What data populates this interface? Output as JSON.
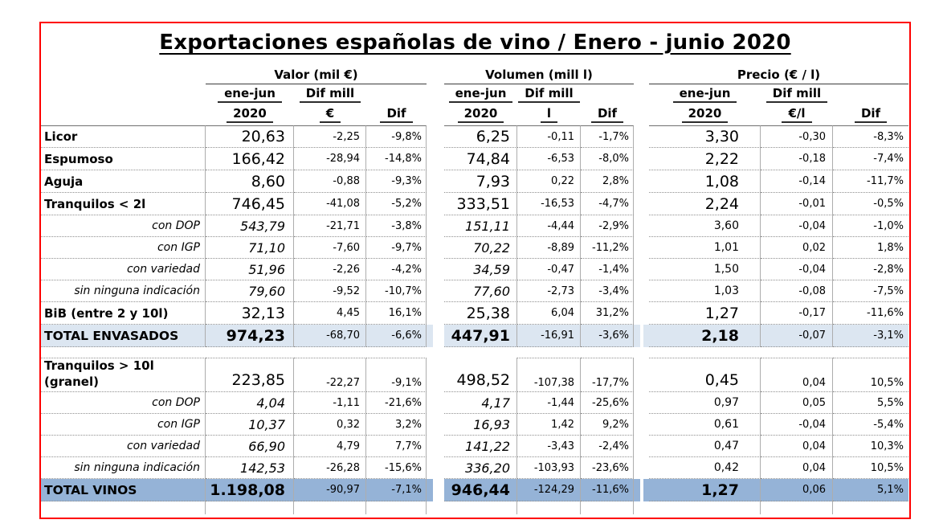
{
  "header": {
    "group_titles": [
      "Valor (mil €)",
      "Volumen (mill l)",
      "Precio (€ / l)"
    ],
    "period_line1": "ene-jun",
    "period_line2": "2020",
    "dif_line1": "Dif mill",
    "dif_units": [
      "€",
      "l",
      "€/l"
    ],
    "dif_label": "Dif"
  },
  "colors": {
    "border_red": "#fe0000",
    "total_envasados_bg": "#dce6f1",
    "total_vinos_bg": "#95b3d7",
    "note_marker_green": "#1e7b3c"
  },
  "chart_data": {
    "type": "table",
    "title": "Exportaciones españolas de vino / Enero - junio 2020",
    "column_groups": [
      {
        "title": "Valor (mil €)",
        "columns": [
          "ene-jun 2020",
          "Dif mill €",
          "Dif"
        ]
      },
      {
        "title": "Volumen (mill l)",
        "columns": [
          "ene-jun 2020",
          "Dif mill l",
          "Dif"
        ]
      },
      {
        "title": "Precio (€ / l)",
        "columns": [
          "ene-jun 2020",
          "Dif mill €/l",
          "Dif"
        ]
      }
    ],
    "rows": [
      {
        "type": "main",
        "label": "Licor",
        "valor": [
          "20,63",
          "-2,25",
          "-9,8%"
        ],
        "volumen": [
          "6,25",
          "-0,11",
          "-1,7%"
        ],
        "precio": [
          "3,30",
          "-0,30",
          "-8,3%"
        ]
      },
      {
        "type": "main",
        "label": "Espumoso",
        "valor": [
          "166,42",
          "-28,94",
          "-14,8%"
        ],
        "volumen": [
          "74,84",
          "-6,53",
          "-8,0%"
        ],
        "precio": [
          "2,22",
          "-0,18",
          "-7,4%"
        ]
      },
      {
        "type": "main",
        "label": "Aguja",
        "valor": [
          "8,60",
          "-0,88",
          "-9,3%"
        ],
        "volumen": [
          "7,93",
          "0,22",
          "2,8%"
        ],
        "precio": [
          "1,08",
          "-0,14",
          "-11,7%"
        ]
      },
      {
        "type": "main",
        "label": "Tranquilos < 2l",
        "notes": [
          "valor",
          "volumen"
        ],
        "valor": [
          "746,45",
          "-41,08",
          "-5,2%"
        ],
        "volumen": [
          "333,51",
          "-16,53",
          "-4,7%"
        ],
        "precio": [
          "2,24",
          "-0,01",
          "-0,5%"
        ]
      },
      {
        "type": "sub",
        "label": "con DOP",
        "valor": [
          "543,79",
          "-21,71",
          "-3,8%"
        ],
        "volumen": [
          "151,11",
          "-4,44",
          "-2,9%"
        ],
        "precio": [
          "3,60",
          "-0,04",
          "-1,0%"
        ]
      },
      {
        "type": "sub",
        "label": "con IGP",
        "valor": [
          "71,10",
          "-7,60",
          "-9,7%"
        ],
        "volumen": [
          "70,22",
          "-8,89",
          "-11,2%"
        ],
        "precio": [
          "1,01",
          "0,02",
          "1,8%"
        ]
      },
      {
        "type": "sub",
        "label": "con variedad",
        "valor": [
          "51,96",
          "-2,26",
          "-4,2%"
        ],
        "volumen": [
          "34,59",
          "-0,47",
          "-1,4%"
        ],
        "precio": [
          "1,50",
          "-0,04",
          "-2,8%"
        ]
      },
      {
        "type": "sub",
        "label": "sin ninguna indicación",
        "valor": [
          "79,60",
          "-9,52",
          "-10,7%"
        ],
        "volumen": [
          "77,60",
          "-2,73",
          "-3,4%"
        ],
        "precio": [
          "1,03",
          "-0,08",
          "-7,5%"
        ]
      },
      {
        "type": "main",
        "label": "BiB (entre 2 y 10l)",
        "valor": [
          "32,13",
          "4,45",
          "16,1%"
        ],
        "volumen": [
          "25,38",
          "6,04",
          "31,2%"
        ],
        "precio": [
          "1,27",
          "-0,17",
          "-11,6%"
        ]
      },
      {
        "type": "total",
        "variant": "light",
        "spacer_after": true,
        "label": "TOTAL ENVASADOS",
        "valor": [
          "974,23",
          "-68,70",
          "-6,6%"
        ],
        "volumen": [
          "447,91",
          "-16,91",
          "-3,6%"
        ],
        "precio": [
          "2,18",
          "-0,07",
          "-3,1%"
        ]
      },
      {
        "type": "granel",
        "label": "Tranquilos > 10l",
        "label2": "(granel)",
        "valor": [
          "223,85",
          "-22,27",
          "-9,1%"
        ],
        "volumen": [
          "498,52",
          "-107,38",
          "-17,7%"
        ],
        "precio": [
          "0,45",
          "0,04",
          "10,5%"
        ]
      },
      {
        "type": "sub",
        "label": "con DOP",
        "valor": [
          "4,04",
          "-1,11",
          "-21,6%"
        ],
        "volumen": [
          "4,17",
          "-1,44",
          "-25,6%"
        ],
        "precio": [
          "0,97",
          "0,05",
          "5,5%"
        ]
      },
      {
        "type": "sub",
        "label": "con IGP",
        "valor": [
          "10,37",
          "0,32",
          "3,2%"
        ],
        "volumen": [
          "16,93",
          "1,42",
          "9,2%"
        ],
        "precio": [
          "0,61",
          "-0,04",
          "-5,4%"
        ]
      },
      {
        "type": "sub",
        "label": "con variedad",
        "valor": [
          "66,90",
          "4,79",
          "7,7%"
        ],
        "volumen": [
          "141,22",
          "-3,43",
          "-2,4%"
        ],
        "precio": [
          "0,47",
          "0,04",
          "10,3%"
        ]
      },
      {
        "type": "sub",
        "label": "sin ninguna indicación",
        "valor": [
          "142,53",
          "-26,28",
          "-15,6%"
        ],
        "volumen": [
          "336,20",
          "-103,93",
          "-23,6%"
        ],
        "precio": [
          "0,42",
          "0,04",
          "10,5%"
        ]
      },
      {
        "type": "total",
        "variant": "dark",
        "label": "TOTAL VINOS",
        "valor": [
          "1.198,08",
          "-90,97",
          "-7,1%"
        ],
        "volumen": [
          "946,44",
          "-124,29",
          "-11,6%"
        ],
        "precio": [
          "1,27",
          "0,06",
          "5,1%"
        ]
      }
    ]
  }
}
